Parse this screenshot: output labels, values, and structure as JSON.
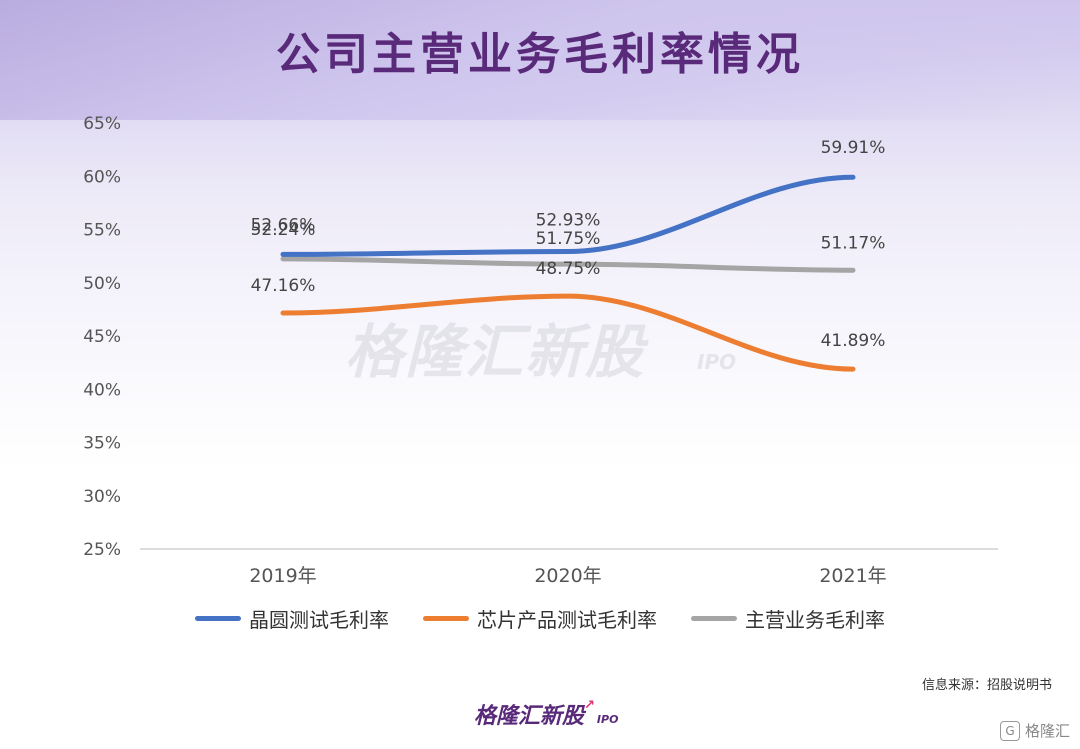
{
  "title": "公司主营业务毛利率情况",
  "watermark": {
    "text": "格隆汇新股",
    "sub": "IPO"
  },
  "source": "信息来源：招股说明书",
  "logo": {
    "text": "格隆汇新股",
    "sub": "IPO"
  },
  "corner": {
    "icon": "G",
    "text": "格隆汇"
  },
  "chart_data": {
    "type": "line",
    "title": "公司主营业务毛利率情况",
    "categories": [
      "2019年",
      "2020年",
      "2021年"
    ],
    "ylim": [
      25,
      65
    ],
    "yticks": [
      "25%",
      "30%",
      "35%",
      "40%",
      "45%",
      "50%",
      "55%",
      "60%",
      "65%"
    ],
    "ytick_values": [
      25,
      30,
      35,
      40,
      45,
      50,
      55,
      60,
      65
    ],
    "grid": false,
    "legend_position": "bottom",
    "series": [
      {
        "name": "晶圆测试毛利率",
        "values": [
          52.66,
          52.93,
          59.91
        ],
        "labels": [
          "52.66%",
          "52.93%",
          "59.91%"
        ],
        "color": "#4472c4"
      },
      {
        "name": "芯片产品测试毛利率",
        "values": [
          47.16,
          48.75,
          41.89
        ],
        "labels": [
          "47.16%",
          "48.75%",
          "41.89%"
        ],
        "color": "#ed7d31"
      },
      {
        "name": "主营业务毛利率",
        "values": [
          52.24,
          51.75,
          51.17
        ],
        "labels": [
          "52.24%",
          "51.75%",
          "51.17%"
        ],
        "color": "#a5a5a5"
      }
    ]
  }
}
